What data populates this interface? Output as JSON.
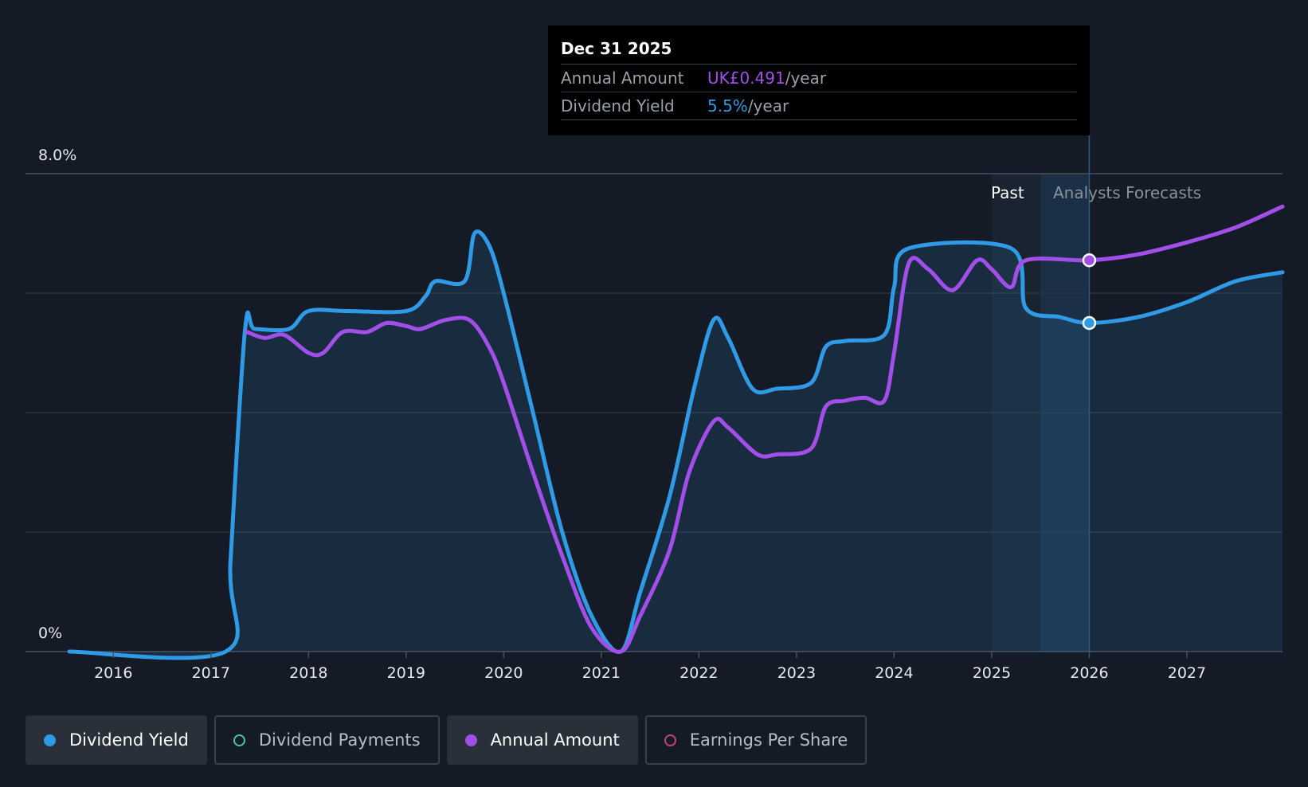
{
  "tooltip": {
    "date": "Dec 31 2025",
    "rows": [
      {
        "key": "Annual Amount",
        "value": "UK£0.491",
        "unit": "/year",
        "color": "#a24ee8"
      },
      {
        "key": "Dividend Yield",
        "value": "5.5%",
        "unit": "/year",
        "color": "#2f9ae6"
      }
    ]
  },
  "regions": {
    "past": "Past",
    "forecast": "Analysts Forecasts"
  },
  "legend": [
    {
      "label": "Dividend Yield",
      "color": "#2f9ae6",
      "filled": true,
      "active": true
    },
    {
      "label": "Dividend Payments",
      "color": "#48c2b0",
      "filled": false,
      "active": false
    },
    {
      "label": "Annual Amount",
      "color": "#a24ee8",
      "filled": true,
      "active": true
    },
    {
      "label": "Earnings Per Share",
      "color": "#c0457a",
      "filled": false,
      "active": false
    }
  ],
  "chart_data": {
    "type": "line",
    "y_axis": {
      "min_label": "0%",
      "max_label": "8.0%",
      "ylim": [
        0,
        8.0
      ],
      "gridlines": [
        0,
        2,
        4,
        6,
        8
      ]
    },
    "x_ticks": [
      "2016",
      "2017",
      "2018",
      "2019",
      "2020",
      "2021",
      "2022",
      "2023",
      "2024",
      "2025",
      "2026",
      "2027"
    ],
    "xlim": [
      2015.1,
      2027.98
    ],
    "series": [
      {
        "name": "Dividend Yield",
        "color": "#2f9ae6",
        "fill": true,
        "points": [
          [
            2015.55,
            0
          ],
          [
            2017.15,
            0
          ],
          [
            2017.2,
            1.5
          ],
          [
            2017.35,
            5.4
          ],
          [
            2017.45,
            5.4
          ],
          [
            2017.8,
            5.4
          ],
          [
            2018.0,
            5.7
          ],
          [
            2018.4,
            5.7
          ],
          [
            2019.0,
            5.7
          ],
          [
            2019.2,
            5.95
          ],
          [
            2019.3,
            6.2
          ],
          [
            2019.6,
            6.2
          ],
          [
            2019.7,
            7.0
          ],
          [
            2019.85,
            6.8
          ],
          [
            2020.0,
            6.0
          ],
          [
            2020.3,
            4.0
          ],
          [
            2020.6,
            2.0
          ],
          [
            2020.9,
            0.6
          ],
          [
            2021.2,
            0
          ],
          [
            2021.4,
            1.0
          ],
          [
            2021.7,
            2.6
          ],
          [
            2021.95,
            4.4
          ],
          [
            2022.15,
            5.55
          ],
          [
            2022.3,
            5.25
          ],
          [
            2022.55,
            4.4
          ],
          [
            2022.8,
            4.4
          ],
          [
            2023.15,
            4.5
          ],
          [
            2023.3,
            5.1
          ],
          [
            2023.5,
            5.2
          ],
          [
            2023.9,
            5.3
          ],
          [
            2024.0,
            6.1
          ],
          [
            2024.15,
            6.75
          ],
          [
            2025.2,
            6.75
          ],
          [
            2025.35,
            5.75
          ],
          [
            2025.7,
            5.6
          ],
          [
            2026.0,
            5.5
          ],
          [
            2026.5,
            5.6
          ],
          [
            2027.0,
            5.85
          ],
          [
            2027.5,
            6.2
          ],
          [
            2027.98,
            6.35
          ]
        ]
      },
      {
        "name": "Annual Amount",
        "color": "#a24ee8",
        "fill": false,
        "points": [
          [
            2017.37,
            5.35
          ],
          [
            2017.55,
            5.25
          ],
          [
            2017.75,
            5.3
          ],
          [
            2018.0,
            5.0
          ],
          [
            2018.15,
            5.0
          ],
          [
            2018.35,
            5.35
          ],
          [
            2018.6,
            5.35
          ],
          [
            2018.8,
            5.5
          ],
          [
            2019.0,
            5.45
          ],
          [
            2019.15,
            5.4
          ],
          [
            2019.4,
            5.55
          ],
          [
            2019.65,
            5.55
          ],
          [
            2019.85,
            5.1
          ],
          [
            2020.0,
            4.5
          ],
          [
            2020.3,
            3.0
          ],
          [
            2020.6,
            1.6
          ],
          [
            2020.9,
            0.4
          ],
          [
            2021.2,
            0
          ],
          [
            2021.4,
            0.6
          ],
          [
            2021.7,
            1.7
          ],
          [
            2021.9,
            3.0
          ],
          [
            2022.15,
            3.85
          ],
          [
            2022.3,
            3.75
          ],
          [
            2022.6,
            3.3
          ],
          [
            2022.8,
            3.3
          ],
          [
            2023.15,
            3.4
          ],
          [
            2023.3,
            4.1
          ],
          [
            2023.5,
            4.2
          ],
          [
            2023.7,
            4.25
          ],
          [
            2023.9,
            4.2
          ],
          [
            2024.0,
            5.0
          ],
          [
            2024.15,
            6.5
          ],
          [
            2024.35,
            6.4
          ],
          [
            2024.6,
            6.05
          ],
          [
            2024.85,
            6.55
          ],
          [
            2025.0,
            6.4
          ],
          [
            2025.2,
            6.1
          ],
          [
            2025.35,
            6.55
          ],
          [
            2026.0,
            6.55
          ],
          [
            2026.5,
            6.65
          ],
          [
            2027.0,
            6.85
          ],
          [
            2027.5,
            7.1
          ],
          [
            2027.98,
            7.45
          ]
        ]
      }
    ],
    "highlight": {
      "x": 2026.0,
      "yield": 5.5,
      "amount": 6.55
    },
    "past_band": [
      2025.0,
      2025.5
    ],
    "forecast_band": [
      2025.5,
      2026.0
    ]
  }
}
